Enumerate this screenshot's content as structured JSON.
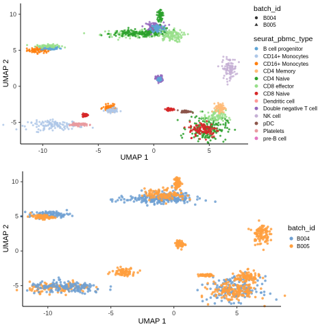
{
  "chart_data": [
    {
      "type": "scatter",
      "xlabel": "UMAP 1",
      "ylabel": "UMAP 2",
      "xlim": [
        -12,
        8.5
      ],
      "ylim": [
        -8,
        11.5
      ],
      "x_ticks": [
        -10,
        -5,
        0,
        5
      ],
      "y_ticks": [
        -5,
        0,
        5,
        10
      ],
      "grid": false,
      "legend_placement": "right",
      "shape_legend": {
        "title": "batch_id",
        "entries": [
          {
            "name": "B004",
            "shape": "circle"
          },
          {
            "name": "B005",
            "shape": "triangle"
          }
        ]
      },
      "color_legend": {
        "title": "seurat_pbmc_type",
        "entries": [
          {
            "name": "B cell progenitor",
            "color": "#5ea5d6"
          },
          {
            "name": "CD14+ Monocytes",
            "color": "#aec7e8"
          },
          {
            "name": "CD16+ Monocytes",
            "color": "#ff7f0e"
          },
          {
            "name": "CD4 Memory",
            "color": "#ffbb78"
          },
          {
            "name": "CD4 Naive",
            "color": "#2ca02c"
          },
          {
            "name": "CD8 effector",
            "color": "#98df8a"
          },
          {
            "name": "CD8 Naive",
            "color": "#d62728"
          },
          {
            "name": "Dendritic cell",
            "color": "#ff9896"
          },
          {
            "name": "Double negative T cell",
            "color": "#9467bd"
          },
          {
            "name": "NK cell",
            "color": "#c5b0d5"
          },
          {
            "name": "pDC",
            "color": "#8c564b"
          },
          {
            "name": "Platelets",
            "color": "#e99a9f"
          },
          {
            "name": "pre-B cell",
            "color": "#e377c2"
          }
        ]
      },
      "clusters": [
        {
          "label": "CD16+ Monocytes",
          "cx": -10.3,
          "cy": 5.0,
          "rx": 1.0,
          "ry": 0.35
        },
        {
          "label": "B cell progenitor",
          "cx": -9.3,
          "cy": 5.3,
          "rx": 0.8,
          "ry": 0.25
        },
        {
          "label": "CD8 effector",
          "cx": -9.5,
          "cy": 5.6,
          "rx": 1.0,
          "ry": 0.2
        },
        {
          "label": "CD8 effector",
          "cx": -1.5,
          "cy": 7.3,
          "rx": 3.0,
          "ry": 0.45
        },
        {
          "label": "CD4 Naive",
          "cx": -1.8,
          "cy": 7.3,
          "rx": 2.0,
          "ry": 0.45
        },
        {
          "label": "CD4 Naive",
          "cx": 0.2,
          "cy": 7.6,
          "rx": 1.2,
          "ry": 0.6
        },
        {
          "label": "Double negative T cell",
          "cx": 0.0,
          "cy": 8.3,
          "rx": 0.8,
          "ry": 0.5
        },
        {
          "label": "B cell progenitor",
          "cx": 0.4,
          "cy": 8.0,
          "rx": 0.6,
          "ry": 0.6
        },
        {
          "label": "CD4 Naive",
          "cx": 0.6,
          "cy": 9.8,
          "rx": 0.2,
          "ry": 0.8
        },
        {
          "label": "CD8 effector",
          "cx": 1.5,
          "cy": 7.0,
          "rx": 1.0,
          "ry": 0.8
        },
        {
          "label": "Double negative T cell",
          "cx": 0.5,
          "cy": 1.0,
          "rx": 0.3,
          "ry": 0.45
        },
        {
          "label": "B cell progenitor",
          "cx": 0.5,
          "cy": 1.0,
          "rx": 0.15,
          "ry": 0.2
        },
        {
          "label": "NK cell",
          "cx": 6.8,
          "cy": 2.5,
          "rx": 0.6,
          "ry": 1.3
        },
        {
          "label": "CD14+ Monocytes",
          "cx": -8.8,
          "cy": -5.4,
          "rx": 2.3,
          "ry": 0.6
        },
        {
          "label": "Platelets",
          "cx": -6.8,
          "cy": -5.3,
          "rx": 0.7,
          "ry": 0.2
        },
        {
          "label": "CD16+ Monocytes",
          "cx": -4.0,
          "cy": -3.0,
          "rx": 0.5,
          "ry": 0.4
        },
        {
          "label": "CD14+ Monocytes",
          "cx": -3.8,
          "cy": -3.4,
          "rx": 0.5,
          "ry": 0.3
        },
        {
          "label": "CD4 Naive",
          "cx": 4.8,
          "cy": -5.8,
          "rx": 1.6,
          "ry": 1.6
        },
        {
          "label": "CD8 effector",
          "cx": 5.5,
          "cy": -4.2,
          "rx": 0.9,
          "ry": 0.8
        },
        {
          "label": "CD4 Memory",
          "cx": 6.0,
          "cy": -3.0,
          "rx": 0.4,
          "ry": 0.6
        },
        {
          "label": "CD8 Naive",
          "cx": 4.5,
          "cy": -6.0,
          "rx": 1.2,
          "ry": 1.0
        },
        {
          "label": "pDC",
          "cx": 2.9,
          "cy": -3.5,
          "rx": 0.4,
          "ry": 0.15
        },
        {
          "label": "CD8 Naive",
          "cx": 1.4,
          "cy": -3.2,
          "rx": 0.3,
          "ry": 0.15
        },
        {
          "label": "CD8 Naive",
          "cx": -6.2,
          "cy": -4.0,
          "rx": 0.2,
          "ry": 0.2
        }
      ]
    },
    {
      "type": "scatter",
      "xlabel": "UMAP 1",
      "ylabel": "UMAP 2",
      "xlim": [
        -12,
        8.5
      ],
      "ylim": [
        -8,
        11.5
      ],
      "x_ticks": [
        -10,
        -5,
        0,
        5
      ],
      "y_ticks": [
        -5,
        0,
        5,
        10
      ],
      "grid": false,
      "legend_placement": "right",
      "legend": {
        "title": "batch_id",
        "entries": [
          {
            "name": "B004",
            "color": "#6fa0d2"
          },
          {
            "name": "B005",
            "color": "#ff9f3e"
          }
        ]
      },
      "clusters": [
        {
          "label": "B004",
          "cx": -9.8,
          "cy": 5.3,
          "rx": 1.5,
          "ry": 0.4
        },
        {
          "label": "B005",
          "cx": -10.5,
          "cy": 4.9,
          "rx": 0.8,
          "ry": 0.3
        },
        {
          "label": "B004",
          "cx": -1.8,
          "cy": 7.4,
          "rx": 2.8,
          "ry": 0.5
        },
        {
          "label": "B004",
          "cx": -0.5,
          "cy": 7.8,
          "rx": 1.8,
          "ry": 0.8
        },
        {
          "label": "B005",
          "cx": -0.7,
          "cy": 8.2,
          "rx": 1.5,
          "ry": 0.8
        },
        {
          "label": "B005",
          "cx": 0.3,
          "cy": 9.8,
          "rx": 0.25,
          "ry": 0.7
        },
        {
          "label": "B005",
          "cx": 6.9,
          "cy": 2.5,
          "rx": 0.6,
          "ry": 1.4
        },
        {
          "label": "B005",
          "cx": 0.5,
          "cy": 1.0,
          "rx": 0.3,
          "ry": 0.45
        },
        {
          "label": "B005",
          "cx": -9.0,
          "cy": -5.3,
          "rx": 2.2,
          "ry": 0.7
        },
        {
          "label": "B004",
          "cx": -8.5,
          "cy": -5.3,
          "rx": 2.8,
          "ry": 0.8
        },
        {
          "label": "B005",
          "cx": -4.0,
          "cy": -3.0,
          "rx": 0.8,
          "ry": 0.5
        },
        {
          "label": "B004",
          "cx": 4.8,
          "cy": -5.5,
          "rx": 1.9,
          "ry": 1.6
        },
        {
          "label": "B005",
          "cx": 4.8,
          "cy": -5.8,
          "rx": 1.7,
          "ry": 1.3
        },
        {
          "label": "B005",
          "cx": 5.8,
          "cy": -3.8,
          "rx": 0.9,
          "ry": 0.8
        },
        {
          "label": "B005",
          "cx": 2.5,
          "cy": -3.5,
          "rx": 0.5,
          "ry": 0.15
        }
      ]
    }
  ]
}
